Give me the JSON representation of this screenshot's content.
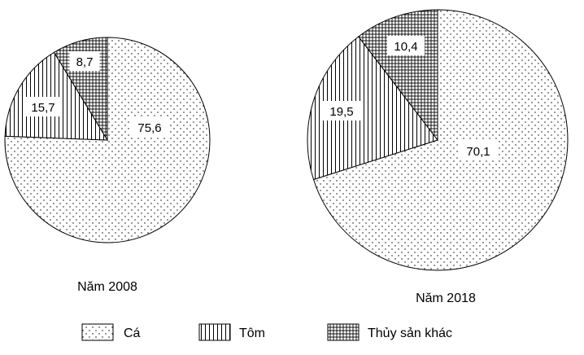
{
  "chart_data": [
    {
      "type": "pie",
      "title": "",
      "caption": "Năm 2008",
      "slices": [
        {
          "name": "Cá",
          "value": 75.6,
          "label": "75,6"
        },
        {
          "name": "Tôm",
          "value": 15.7,
          "label": "15,7"
        },
        {
          "name": "Thủy sản khác",
          "value": 8.7,
          "label": "8,7"
        }
      ]
    },
    {
      "type": "pie",
      "title": "",
      "caption": "Năm 2018",
      "slices": [
        {
          "name": "Cá",
          "value": 70.1,
          "label": "70,1"
        },
        {
          "name": "Tôm",
          "value": 19.5,
          "label": "19,5"
        },
        {
          "name": "Thủy sản khác",
          "value": 10.4,
          "label": "10,4"
        }
      ]
    }
  ],
  "legend": {
    "placement": "bottom",
    "items": [
      {
        "name": "Cá",
        "pattern": "dots"
      },
      {
        "name": "Tôm",
        "pattern": "vertical-stripes"
      },
      {
        "name": "Thủy sản khác",
        "pattern": "grid"
      }
    ]
  }
}
